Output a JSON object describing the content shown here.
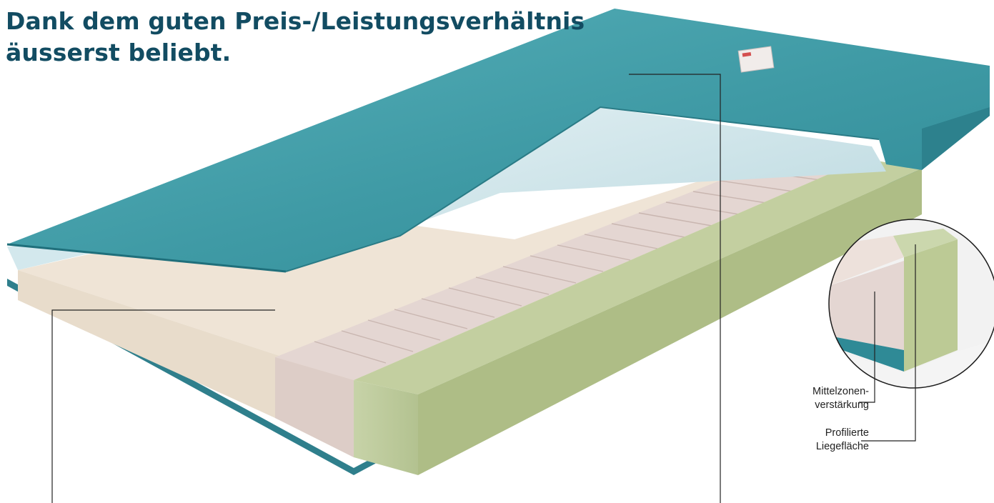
{
  "headline": {
    "line1": "Dank dem guten Preis-/Leistungsverhältnis",
    "line2": "äusserst beliebt."
  },
  "callouts": {
    "center_zone": {
      "line1": "Mittelzonen-",
      "line2": "verstärkung"
    },
    "profiled_surface": {
      "line1": "Profilierte",
      "line2": "Liegefläche"
    }
  },
  "colors": {
    "headline": "#124c62",
    "cover": "#4ba3ac",
    "cover_dark": "#2e8793",
    "inner_liner": "#cfe5ea",
    "foam_cream": "#efe4d6",
    "foam_profiled": "#e4d6d2",
    "foam_green": "#bcc99c",
    "leader_line": "#222222"
  }
}
